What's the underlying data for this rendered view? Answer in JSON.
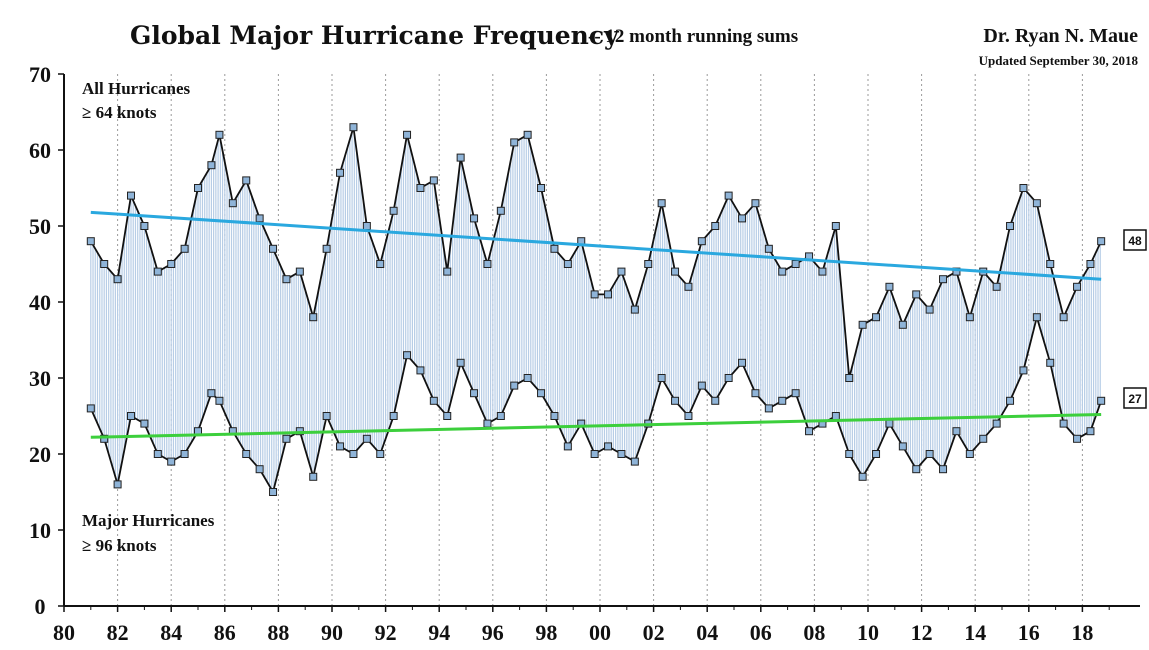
{
  "chart_data": {
    "type": "line",
    "title": "Global Major Hurricane Frequency",
    "subtitle": "-- 12 month running sums",
    "author": "Dr. Ryan N. Maue",
    "updated": "Updated September 30, 2018",
    "ylim": [
      0,
      70
    ],
    "xlim": [
      1980,
      2020
    ],
    "y_ticks": [
      "0",
      "10",
      "20",
      "30",
      "40",
      "50",
      "60",
      "70"
    ],
    "x_ticks": [
      "80",
      "82",
      "84",
      "86",
      "88",
      "90",
      "92",
      "94",
      "96",
      "98",
      "00",
      "02",
      "04",
      "06",
      "08",
      "10",
      "12",
      "14",
      "16",
      "18"
    ],
    "grid": "vertical dotted",
    "annotations": {
      "all_line1": "All Hurricanes",
      "all_line2": "≥ 64 knots",
      "major_line1": "Major Hurricanes",
      "major_line2": "≥ 96 knots"
    },
    "end_labels": {
      "all": "48",
      "major": "27"
    },
    "colors": {
      "all_trend": "#2aa8df",
      "major_trend": "#3ccf3c",
      "series_line": "#111111",
      "marker_fill": "#8fb4d8",
      "fill_lines": "#b7cde6"
    },
    "series": [
      {
        "key": "all",
        "x": [
          1981.0,
          1981.5,
          1982.0,
          1982.5,
          1983.0,
          1983.5,
          1984.0,
          1984.5,
          1985.0,
          1985.5,
          1985.8,
          1986.3,
          1986.8,
          1987.3,
          1987.8,
          1988.3,
          1988.8,
          1989.3,
          1989.8,
          1990.3,
          1990.8,
          1991.3,
          1991.8,
          1992.3,
          1992.8,
          1993.3,
          1993.8,
          1994.3,
          1994.8,
          1995.3,
          1995.8,
          1996.3,
          1996.8,
          1997.3,
          1997.8,
          1998.3,
          1998.8,
          1999.3,
          1999.8,
          2000.3,
          2000.8,
          2001.3,
          2001.8,
          2002.3,
          2002.8,
          2003.3,
          2003.8,
          2004.3,
          2004.8,
          2005.3,
          2005.8,
          2006.3,
          2006.8,
          2007.3,
          2007.8,
          2008.3,
          2008.8,
          2009.3,
          2009.8,
          2010.3,
          2010.8,
          2011.3,
          2011.8,
          2012.3,
          2012.8,
          2013.3,
          2013.8,
          2014.3,
          2014.8,
          2015.3,
          2015.8,
          2016.3,
          2016.8,
          2017.3,
          2017.8,
          2018.3,
          2018.7
        ],
        "values": [
          48,
          45,
          43,
          54,
          50,
          44,
          45,
          47,
          55,
          58,
          62,
          53,
          56,
          51,
          47,
          43,
          44,
          38,
          47,
          57,
          63,
          50,
          45,
          52,
          62,
          55,
          56,
          44,
          59,
          51,
          45,
          52,
          61,
          62,
          55,
          47,
          45,
          48,
          41,
          41,
          44,
          39,
          45,
          53,
          44,
          42,
          48,
          50,
          54,
          51,
          53,
          47,
          44,
          45,
          46,
          44,
          50,
          30,
          37,
          38,
          42,
          37,
          41,
          39,
          43,
          44,
          38,
          44,
          42,
          50,
          55,
          53,
          45,
          38,
          42,
          45,
          48
        ]
      },
      {
        "key": "major",
        "x": [
          1981.0,
          1981.5,
          1982.0,
          1982.5,
          1983.0,
          1983.5,
          1984.0,
          1984.5,
          1985.0,
          1985.5,
          1985.8,
          1986.3,
          1986.8,
          1987.3,
          1987.8,
          1988.3,
          1988.8,
          1989.3,
          1989.8,
          1990.3,
          1990.8,
          1991.3,
          1991.8,
          1992.3,
          1992.8,
          1993.3,
          1993.8,
          1994.3,
          1994.8,
          1995.3,
          1995.8,
          1996.3,
          1996.8,
          1997.3,
          1997.8,
          1998.3,
          1998.8,
          1999.3,
          1999.8,
          2000.3,
          2000.8,
          2001.3,
          2001.8,
          2002.3,
          2002.8,
          2003.3,
          2003.8,
          2004.3,
          2004.8,
          2005.3,
          2005.8,
          2006.3,
          2006.8,
          2007.3,
          2007.8,
          2008.3,
          2008.8,
          2009.3,
          2009.8,
          2010.3,
          2010.8,
          2011.3,
          2011.8,
          2012.3,
          2012.8,
          2013.3,
          2013.8,
          2014.3,
          2014.8,
          2015.3,
          2015.8,
          2016.3,
          2016.8,
          2017.3,
          2017.8,
          2018.3,
          2018.7
        ],
        "values": [
          26,
          22,
          16,
          25,
          24,
          20,
          19,
          20,
          23,
          28,
          27,
          23,
          20,
          18,
          15,
          22,
          23,
          17,
          25,
          21,
          20,
          22,
          20,
          25,
          33,
          31,
          27,
          25,
          32,
          28,
          24,
          25,
          29,
          30,
          28,
          25,
          21,
          24,
          20,
          21,
          20,
          19,
          24,
          30,
          27,
          25,
          29,
          27,
          30,
          32,
          28,
          26,
          27,
          28,
          23,
          24,
          25,
          20,
          17,
          20,
          24,
          21,
          18,
          20,
          18,
          23,
          20,
          22,
          24,
          27,
          31,
          38,
          32,
          24,
          22,
          23,
          27
        ]
      }
    ],
    "trends": [
      {
        "key": "all",
        "x": [
          1981.0,
          2018.7
        ],
        "values": [
          51.8,
          43.0
        ]
      },
      {
        "key": "major",
        "x": [
          1981.0,
          2018.7
        ],
        "values": [
          22.2,
          25.2
        ]
      }
    ]
  }
}
